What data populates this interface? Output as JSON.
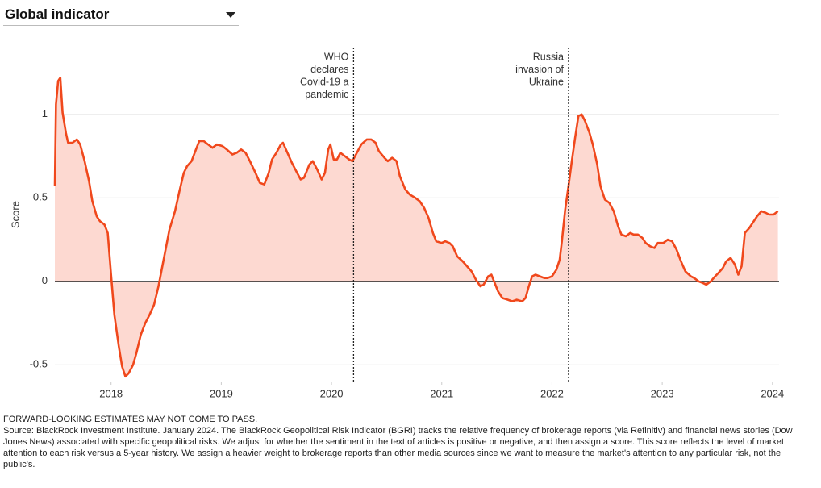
{
  "chart_data": {
    "type": "area-line",
    "dropdown": "Global indicator",
    "ylabel": "Score",
    "color": "#f0481c",
    "fill": "#fdd9d1",
    "xlim": [
      2017.49,
      2024.06
    ],
    "xticks": [
      2018,
      2019,
      2020,
      2021,
      2022,
      2023,
      2024
    ],
    "ylim": [
      -0.6,
      1.4
    ],
    "yticks": [
      -0.5,
      0,
      0.5,
      1
    ],
    "grid": true,
    "annotations": [
      {
        "lines": [
          "WHO",
          "declares",
          "Covid-19 a",
          "pandemic"
        ],
        "x": 2020.2
      },
      {
        "lines": [
          "Russia",
          "invasion of",
          "Ukraine"
        ],
        "x": 2022.15
      }
    ],
    "x": [
      2017.49,
      2017.5,
      2017.52,
      2017.54,
      2017.56,
      2017.59,
      2017.61,
      2017.65,
      2017.69,
      2017.72,
      2017.76,
      2017.8,
      2017.83,
      2017.87,
      2017.9,
      2017.94,
      2017.97,
      2018.0,
      2018.03,
      2018.07,
      2018.1,
      2018.13,
      2018.16,
      2018.2,
      2018.23,
      2018.27,
      2018.31,
      2018.35,
      2018.39,
      2018.43,
      2018.48,
      2018.53,
      2018.58,
      2018.62,
      2018.66,
      2018.69,
      2018.73,
      2018.77,
      2018.8,
      2018.84,
      2018.88,
      2018.92,
      2018.96,
      2019.01,
      2019.05,
      2019.1,
      2019.14,
      2019.18,
      2019.22,
      2019.26,
      2019.31,
      2019.35,
      2019.39,
      2019.43,
      2019.46,
      2019.5,
      2019.54,
      2019.56,
      2019.6,
      2019.64,
      2019.68,
      2019.72,
      2019.75,
      2019.8,
      2019.83,
      2019.87,
      2019.91,
      2019.94,
      2019.97,
      2019.99,
      2020.02,
      2020.05,
      2020.08,
      2020.12,
      2020.16,
      2020.19,
      2020.23,
      2020.27,
      2020.32,
      2020.36,
      2020.4,
      2020.43,
      2020.48,
      2020.51,
      2020.55,
      2020.59,
      2020.62,
      2020.67,
      2020.71,
      2020.76,
      2020.8,
      2020.84,
      2020.88,
      2020.92,
      2020.95,
      2021.0,
      2021.03,
      2021.07,
      2021.1,
      2021.14,
      2021.19,
      2021.23,
      2021.27,
      2021.31,
      2021.35,
      2021.38,
      2021.42,
      2021.45,
      2021.48,
      2021.51,
      2021.55,
      2021.6,
      2021.64,
      2021.68,
      2021.73,
      2021.76,
      2021.79,
      2021.82,
      2021.85,
      2021.89,
      2021.93,
      2021.96,
      2022.0,
      2022.04,
      2022.07,
      2022.09,
      2022.12,
      2022.15,
      2022.18,
      2022.21,
      2022.24,
      2022.27,
      2022.3,
      2022.34,
      2022.37,
      2022.41,
      2022.44,
      2022.48,
      2022.52,
      2022.56,
      2022.6,
      2022.63,
      2022.67,
      2022.71,
      2022.74,
      2022.78,
      2022.82,
      2022.85,
      2022.89,
      2022.93,
      2022.96,
      2023.01,
      2023.05,
      2023.09,
      2023.13,
      2023.17,
      2023.21,
      2023.26,
      2023.29,
      2023.33,
      2023.37,
      2023.4,
      2023.44,
      2023.48,
      2023.51,
      2023.55,
      2023.58,
      2023.62,
      2023.66,
      2023.69,
      2023.72,
      2023.75,
      2023.79,
      2023.83,
      2023.86,
      2023.9,
      2023.94,
      2023.97,
      2024.01,
      2024.05
    ],
    "values": [
      0.57,
      1.06,
      1.2,
      1.22,
      1.01,
      0.89,
      0.83,
      0.83,
      0.85,
      0.82,
      0.72,
      0.6,
      0.48,
      0.39,
      0.36,
      0.34,
      0.29,
      0.04,
      -0.2,
      -0.39,
      -0.51,
      -0.57,
      -0.55,
      -0.5,
      -0.43,
      -0.32,
      -0.25,
      -0.2,
      -0.14,
      -0.03,
      0.14,
      0.31,
      0.42,
      0.54,
      0.65,
      0.69,
      0.72,
      0.79,
      0.84,
      0.84,
      0.82,
      0.8,
      0.82,
      0.81,
      0.79,
      0.76,
      0.77,
      0.79,
      0.77,
      0.72,
      0.65,
      0.59,
      0.58,
      0.65,
      0.73,
      0.77,
      0.82,
      0.83,
      0.77,
      0.71,
      0.66,
      0.61,
      0.62,
      0.7,
      0.72,
      0.67,
      0.61,
      0.65,
      0.79,
      0.82,
      0.73,
      0.73,
      0.77,
      0.75,
      0.73,
      0.72,
      0.77,
      0.82,
      0.85,
      0.85,
      0.83,
      0.78,
      0.74,
      0.72,
      0.74,
      0.72,
      0.63,
      0.55,
      0.52,
      0.5,
      0.48,
      0.44,
      0.38,
      0.29,
      0.24,
      0.23,
      0.24,
      0.23,
      0.21,
      0.15,
      0.12,
      0.09,
      0.06,
      0.01,
      -0.03,
      -0.02,
      0.03,
      0.04,
      -0.01,
      -0.06,
      -0.1,
      -0.11,
      -0.12,
      -0.11,
      -0.12,
      -0.1,
      -0.03,
      0.03,
      0.04,
      0.03,
      0.02,
      0.02,
      0.03,
      0.07,
      0.13,
      0.24,
      0.43,
      0.57,
      0.72,
      0.86,
      0.99,
      1.0,
      0.96,
      0.89,
      0.82,
      0.7,
      0.57,
      0.49,
      0.47,
      0.42,
      0.33,
      0.28,
      0.27,
      0.29,
      0.28,
      0.28,
      0.26,
      0.23,
      0.21,
      0.2,
      0.23,
      0.23,
      0.25,
      0.24,
      0.19,
      0.12,
      0.06,
      0.03,
      0.02,
      0.0,
      -0.01,
      -0.02,
      0.0,
      0.03,
      0.05,
      0.08,
      0.12,
      0.14,
      0.1,
      0.04,
      0.09,
      0.29,
      0.32,
      0.36,
      0.39,
      0.42,
      0.41,
      0.4,
      0.4,
      0.42
    ],
    "note": "FORWARD-LOOKING ESTIMATES MAY NOT COME TO PASS.",
    "source": "Source: BlackRock Investment Institute. January 2024. The BlackRock Geopolitical Risk Indicator (BGRI) tracks the relative frequency of brokerage reports (via Refinitiv) and financial news stories (Dow Jones News) associated with specific geopolitical risks. We adjust for whether the sentiment in the text of articles is positive or negative, and then assign a score. This score reflects the level of market attention to each risk versus a 5-year history. We assign a heavier weight to brokerage reports than other media sources since we want to measure the market's attention to any particular risk, not the public's."
  }
}
